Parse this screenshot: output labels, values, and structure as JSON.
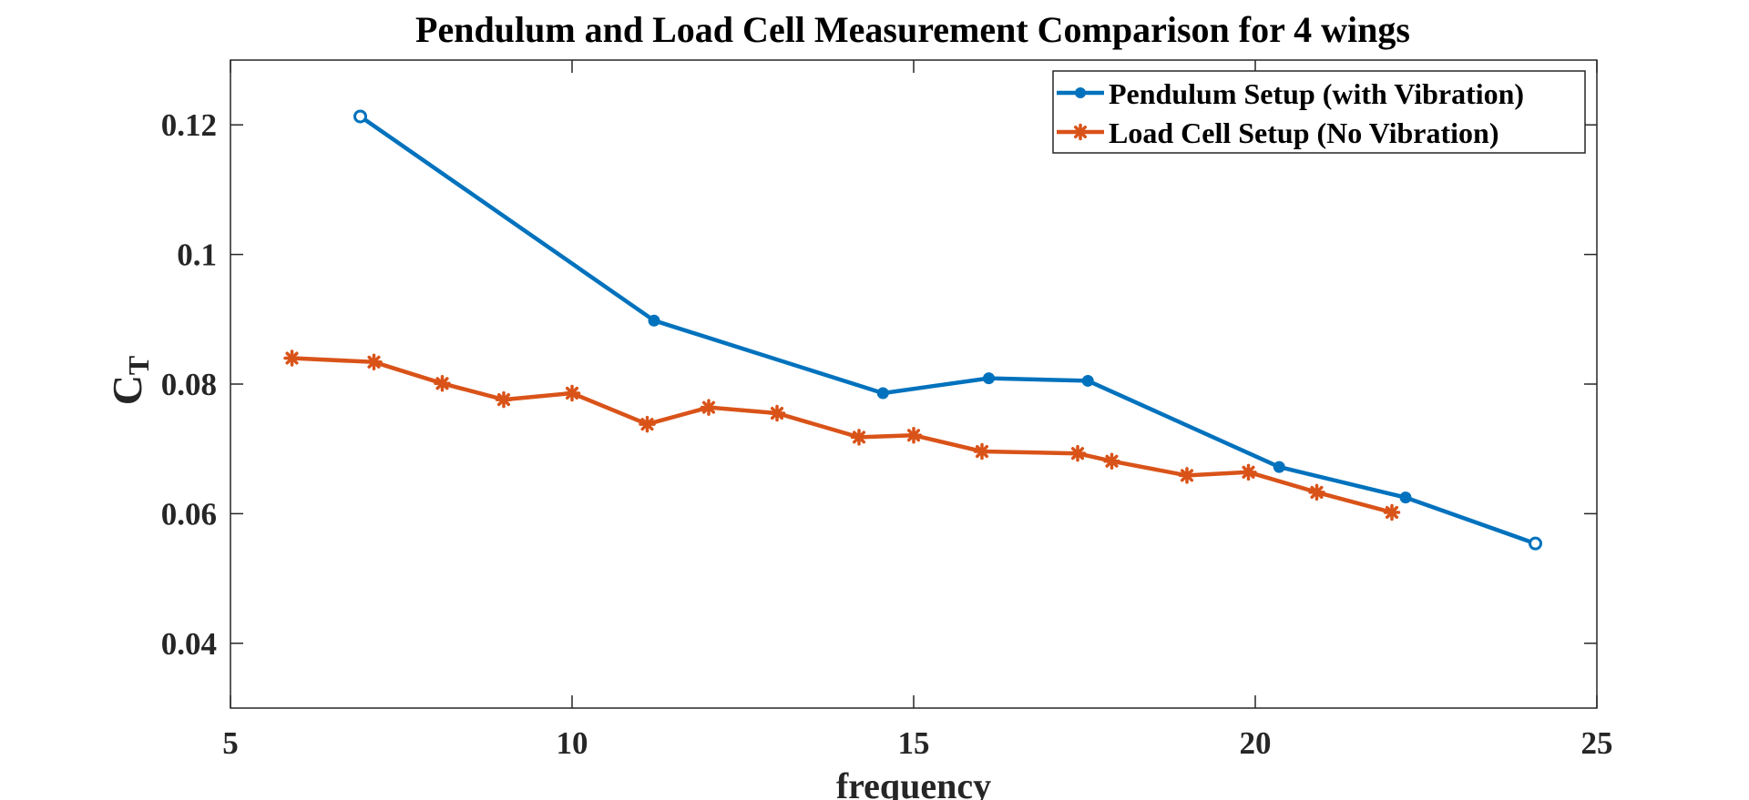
{
  "chart_data": {
    "type": "line",
    "title": "Pendulum and Load Cell Measurement Comparison for 4 wings",
    "xlabel": "frequency",
    "ylabel": {
      "main": "C",
      "subscript": "T"
    },
    "xlim": [
      5,
      25
    ],
    "ylim": [
      0.03,
      0.13
    ],
    "xticks": [
      5,
      10,
      15,
      20,
      25
    ],
    "xtick_labels": [
      "5",
      "10",
      "15",
      "20",
      "25"
    ],
    "yticks": [
      0.04,
      0.06,
      0.08,
      0.1,
      0.12
    ],
    "ytick_labels": [
      "0.04",
      "0.06",
      "0.08",
      "0.1",
      "0.12"
    ],
    "grid": false,
    "legend_position": "top-right",
    "series": [
      {
        "name": "Pendulum Setup (with Vibration)",
        "color": "#0072BD",
        "marker": "circle",
        "x": [
          6.9,
          11.2,
          14.55,
          16.1,
          17.55,
          20.35,
          22.2,
          24.1
        ],
        "values": [
          0.1213,
          0.0898,
          0.0786,
          0.0809,
          0.0805,
          0.0672,
          0.0625,
          0.0554
        ]
      },
      {
        "name": "Load Cell Setup (No Vibration)",
        "color": "#D95319",
        "marker": "asterisk",
        "x": [
          5.9,
          7.1,
          8.1,
          9.0,
          10.0,
          11.1,
          12.0,
          13.0,
          14.2,
          15.0,
          16.0,
          17.4,
          17.9,
          19.0,
          19.9,
          20.9,
          22.0
        ],
        "values": [
          0.084,
          0.0834,
          0.0801,
          0.0776,
          0.0786,
          0.0738,
          0.0764,
          0.0755,
          0.0718,
          0.0721,
          0.0696,
          0.0693,
          0.0681,
          0.0659,
          0.0664,
          0.0633,
          0.0602
        ]
      }
    ]
  }
}
